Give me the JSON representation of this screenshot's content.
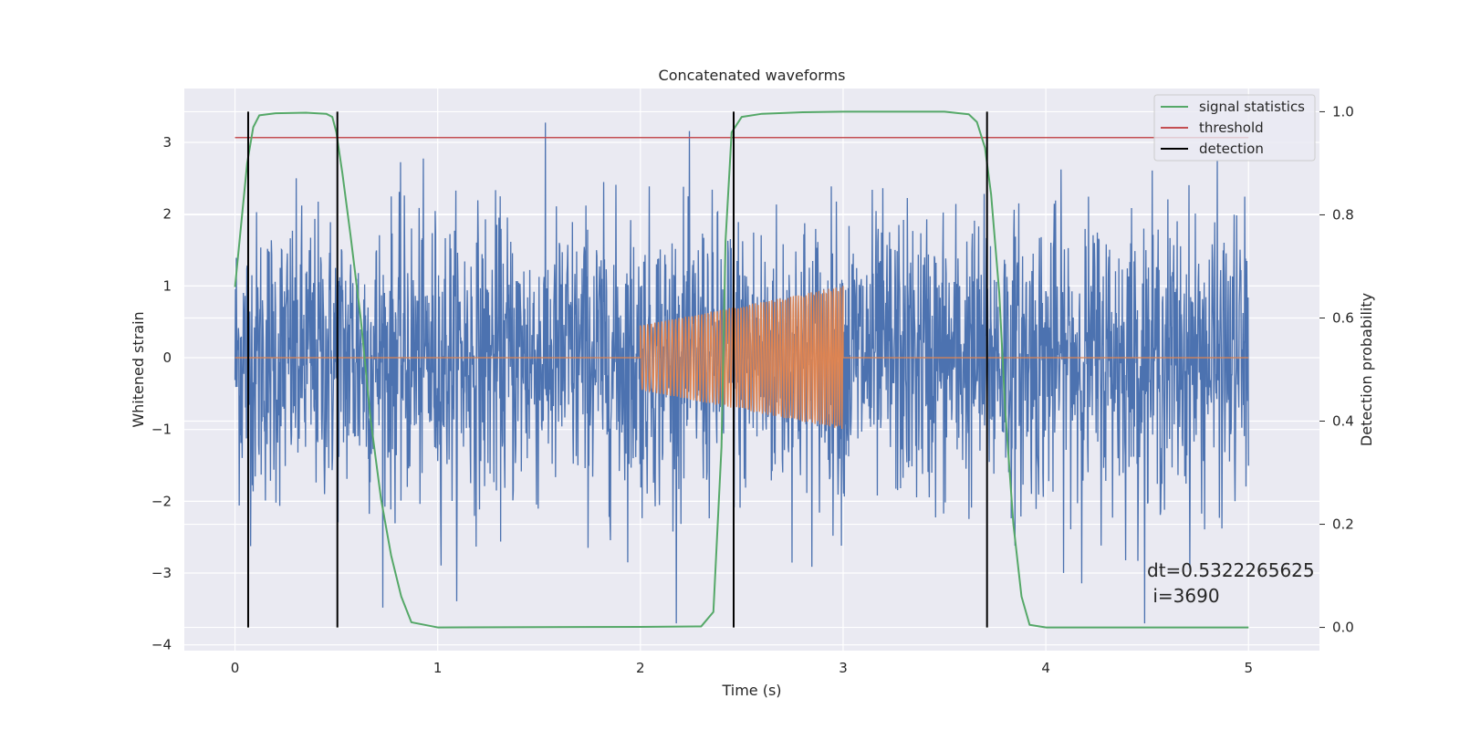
{
  "chart_data": {
    "type": "line",
    "title": "Concatenated waveforms",
    "xlabel": "Time (s)",
    "ylabel": "Whitened strain",
    "ylabel_right": "Detection probability",
    "xlim": [
      -0.25,
      5.35
    ],
    "ylim": [
      -4.08,
      3.75
    ],
    "ylim_right": [
      -0.045,
      1.045
    ],
    "x_ticks": [
      0,
      1,
      2,
      3,
      4,
      5
    ],
    "y_ticks": [
      -4,
      -3,
      -2,
      -1,
      0,
      1,
      2,
      3
    ],
    "y_ticks_right": [
      0.0,
      0.2,
      0.4,
      0.6,
      0.8,
      1.0
    ],
    "grid": true,
    "legend_position": "top-right",
    "series": [
      {
        "name": "",
        "axis": "left",
        "color": "#4c72b0",
        "description": "whitened strain noise",
        "x_range": [
          0,
          5
        ],
        "amplitude_sd": 1.0,
        "y_min": -3.7,
        "y_max": 3.35
      },
      {
        "name": "",
        "axis": "left",
        "color": "#dd8452",
        "description": "injected chirp waveform",
        "x": [
          0,
          2,
          2,
          3,
          3,
          5
        ],
        "envelope_x": [
          2.0,
          3.0
        ],
        "envelope_amplitude": [
          0.45,
          1.0
        ]
      },
      {
        "name": "signal statistics",
        "axis": "right",
        "color": "#55a868",
        "x": [
          0.0,
          0.03,
          0.06,
          0.09,
          0.12,
          0.2,
          0.35,
          0.45,
          0.48,
          0.5,
          0.53,
          0.57,
          0.62,
          0.67,
          0.72,
          0.77,
          0.82,
          0.87,
          1.0,
          2.0,
          2.3,
          2.36,
          2.4,
          2.42,
          2.45,
          2.5,
          2.6,
          2.8,
          3.0,
          3.5,
          3.62,
          3.66,
          3.7,
          3.73,
          3.77,
          3.8,
          3.84,
          3.88,
          3.92,
          4.0,
          5.0
        ],
        "values": [
          0.66,
          0.78,
          0.9,
          0.97,
          0.993,
          0.997,
          0.998,
          0.996,
          0.99,
          0.96,
          0.88,
          0.76,
          0.6,
          0.4,
          0.25,
          0.14,
          0.06,
          0.01,
          0.0,
          0.001,
          0.002,
          0.03,
          0.35,
          0.75,
          0.96,
          0.99,
          0.996,
          0.999,
          1.0,
          1.0,
          0.995,
          0.98,
          0.93,
          0.84,
          0.65,
          0.42,
          0.2,
          0.06,
          0.005,
          0.0,
          0.0
        ]
      },
      {
        "name": "threshold",
        "axis": "right",
        "color": "#c44e52",
        "x": [
          0,
          5
        ],
        "values": [
          0.95,
          0.95
        ]
      },
      {
        "name": "detection",
        "axis": "right",
        "color": "#000000",
        "vlines_x": [
          0.065,
          0.505,
          2.46,
          3.71
        ],
        "vline_range": [
          0.0,
          1.0
        ]
      }
    ],
    "annotations": [
      "dt=0.5322265625",
      " i=3690"
    ]
  }
}
